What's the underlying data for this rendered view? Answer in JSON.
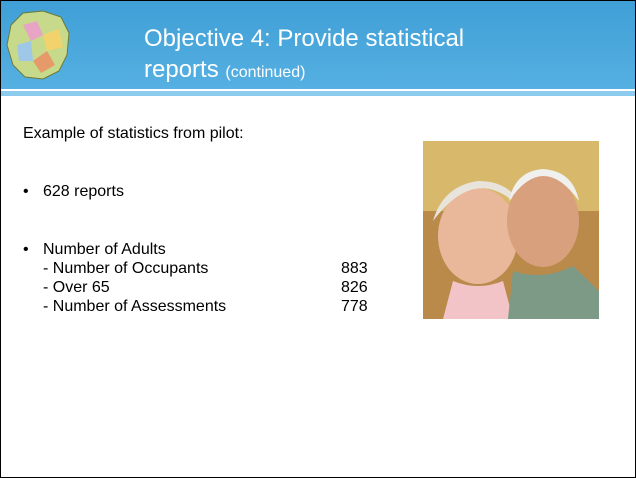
{
  "header": {
    "title": "Objective 4: Provide statistical reports",
    "subtitle": "(continued)"
  },
  "body": {
    "intro": "Example of statistics from pilot:",
    "bullets": [
      {
        "text": "628 reports"
      },
      {
        "text": "Number of Adults",
        "items": [
          {
            "label": "- Number of Occupants",
            "value": 883
          },
          {
            "label": "- Over 65",
            "value": 826
          },
          {
            "label": "- Number of Assessments",
            "value": 778
          }
        ]
      }
    ]
  }
}
